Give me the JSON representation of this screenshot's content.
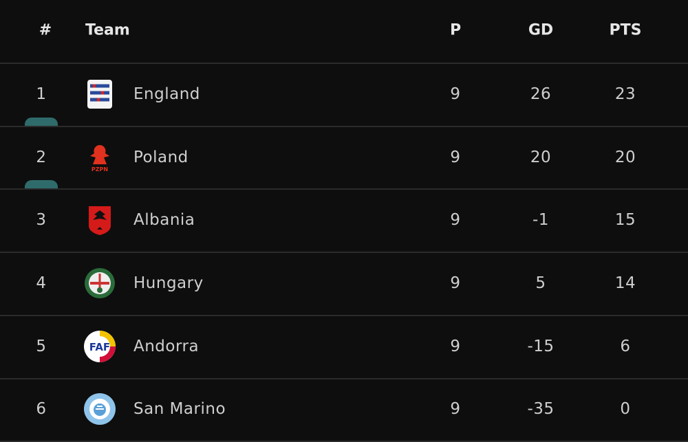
{
  "table": {
    "header": [
      "#",
      "Team",
      "P",
      "GD",
      "PTS"
    ],
    "rows": [
      [
        1,
        "England",
        9,
        26,
        23
      ],
      [
        2,
        "Poland",
        9,
        20,
        20
      ],
      [
        3,
        "Albania",
        9,
        -1,
        15
      ],
      [
        4,
        "Hungary",
        9,
        5,
        14
      ],
      [
        5,
        "Andorra",
        9,
        -15,
        6
      ],
      [
        6,
        "San Marino",
        9,
        -35,
        0
      ]
    ]
  }
}
